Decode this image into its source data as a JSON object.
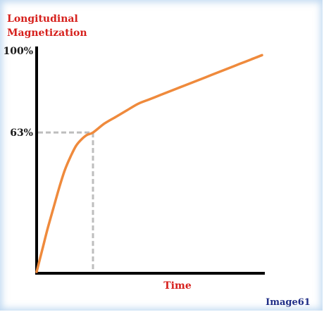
{
  "chart_data": {
    "type": "line",
    "title": "",
    "ylabel_lines": [
      "Longitudinal",
      "Magnetization"
    ],
    "xlabel": "Time",
    "y_ticks": [
      {
        "label": "100%",
        "value": 100
      },
      {
        "label": "63%",
        "value": 63
      }
    ],
    "xlim": [
      0,
      4
    ],
    "ylim": [
      0,
      100
    ],
    "series": [
      {
        "x": [
          0,
          0.1,
          0.2,
          0.3,
          0.4,
          0.5,
          0.6,
          0.7,
          0.8,
          0.9,
          1.0,
          1.2,
          1.4,
          1.6,
          1.8,
          2.0,
          2.2,
          2.4,
          2.6,
          2.8,
          3.0,
          3.2,
          3.4,
          3.6,
          3.8,
          4.0
        ],
        "y": [
          0,
          10,
          20,
          29,
          38,
          46,
          52,
          57,
          60,
          62,
          63,
          67,
          70,
          73,
          76,
          78,
          80,
          82,
          84,
          86,
          88,
          90,
          92,
          94,
          96,
          98
        ]
      }
    ],
    "reference_point": {
      "x": 1.0,
      "y": 63
    },
    "colors": {
      "curve": "#ef8a3c",
      "axes": "#000000",
      "guides": "#bdbdbd",
      "labels": "#d6201c"
    }
  },
  "credit": "Image61"
}
